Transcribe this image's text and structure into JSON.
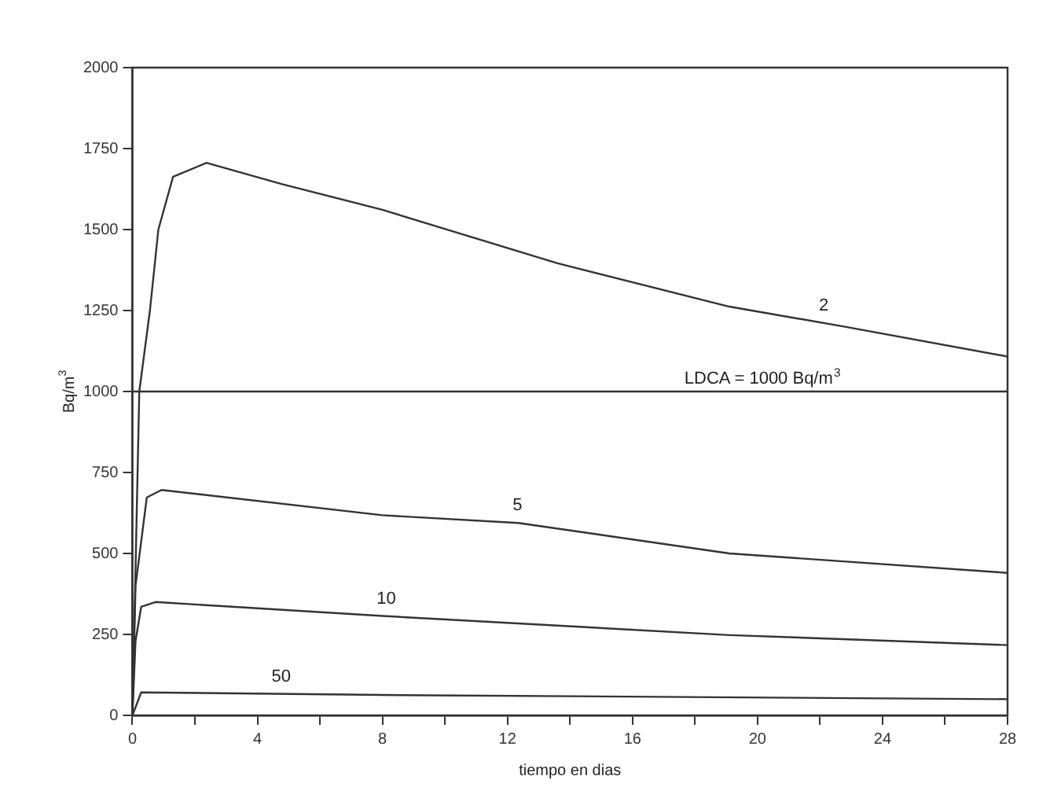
{
  "chart_data": {
    "type": "line",
    "xlabel": "tiempo en dias",
    "ylabel": "Bq/m$^{3}$",
    "xlim": [
      0,
      28
    ],
    "xticks": [
      0,
      {
        "value": 2,
        "label": null
      },
      4,
      {
        "value": 6,
        "label": null
      },
      8,
      {
        "value": 10,
        "label": null
      },
      12,
      {
        "value": 14,
        "label": null
      },
      16,
      {
        "value": 18,
        "label": null
      },
      20,
      {
        "value": 22,
        "label": null
      },
      24,
      {
        "value": 26,
        "label": null
      },
      28
    ],
    "ylim": [
      0,
      2000
    ],
    "yticks": [
      0,
      250,
      500,
      750,
      1000,
      1250,
      1500,
      1750,
      2000
    ],
    "grid": false,
    "legend": false,
    "marker": "none",
    "line_style": "solid",
    "series": [
      {
        "name": "2",
        "color": "#333333",
        "x": [
          0,
          0.22,
          0.56,
          0.83,
          1.3,
          2.37,
          4.8,
          8,
          13.6,
          19.1,
          22.8,
          28
        ],
        "values": [
          0,
          1000,
          1250,
          1500,
          1663,
          1706,
          1640,
          1561,
          1396,
          1262,
          1200,
          1108
        ]
      },
      {
        "name": "5",
        "color": "#333333",
        "x": [
          0,
          0.1,
          0.46,
          0.93,
          8,
          12.35,
          19.1,
          28
        ],
        "values": [
          0,
          400,
          673,
          696,
          618,
          594,
          500,
          440
        ]
      },
      {
        "name": "10",
        "color": "#333333",
        "x": [
          0,
          0.1,
          0.28,
          0.74,
          8,
          19.1,
          28
        ],
        "values": [
          0,
          230,
          335,
          350,
          307,
          248,
          217
        ]
      },
      {
        "name": "50",
        "color": "#333333",
        "x": [
          0,
          0.28,
          8,
          28
        ],
        "values": [
          0,
          71,
          63,
          50
        ]
      }
    ],
    "ref_lines": [
      {
        "axis": "y",
        "value": 1000,
        "label": "LDCA = 1000 Bq/m$^{3}$",
        "color": "#333333"
      }
    ]
  }
}
